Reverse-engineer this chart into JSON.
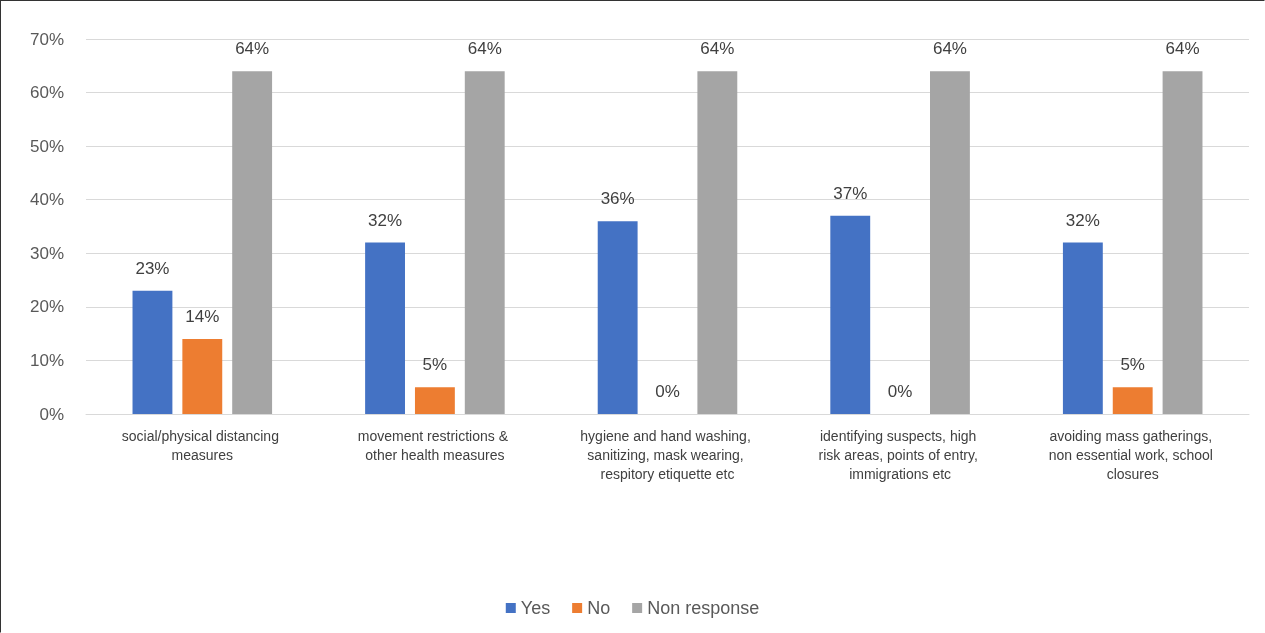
{
  "chart_data": {
    "type": "bar",
    "categories": [
      "social/physical distancing measures",
      "movement restrictions & other health measures",
      "hygiene and hand washing, sanitizing, mask wearing, respitory etiquette etc",
      "identifying suspects, high risk areas, points of entry, immigrations etc",
      "avoiding mass gatherings, non essential work, school closures"
    ],
    "series": [
      {
        "name": "Yes",
        "color": "#4472c4",
        "values": [
          23,
          32,
          36,
          37,
          32
        ],
        "value_labels": [
          "23%",
          "32%",
          "36%",
          "37%",
          "32%"
        ]
      },
      {
        "name": "No",
        "color": "#ed7d31",
        "values": [
          14,
          5,
          0,
          0,
          5
        ],
        "value_labels": [
          "14%",
          "5%",
          "0%",
          "0%",
          "5%"
        ]
      },
      {
        "name": "Non response",
        "color": "#a5a5a5",
        "values": [
          64,
          64,
          64,
          64,
          64
        ],
        "value_labels": [
          "64%",
          "64%",
          "64%",
          "64%",
          "64%"
        ]
      }
    ],
    "ylim": [
      0,
      70
    ],
    "yticks": [
      {
        "value": 0,
        "label": "0%"
      },
      {
        "value": 10,
        "label": "10%"
      },
      {
        "value": 20,
        "label": "20%"
      },
      {
        "value": 30,
        "label": "30%"
      },
      {
        "value": 40,
        "label": "40%"
      },
      {
        "value": 50,
        "label": "50%"
      },
      {
        "value": 60,
        "label": "60%"
      },
      {
        "value": 70,
        "label": "70%"
      }
    ],
    "grid": "y",
    "legend": "bottom"
  }
}
